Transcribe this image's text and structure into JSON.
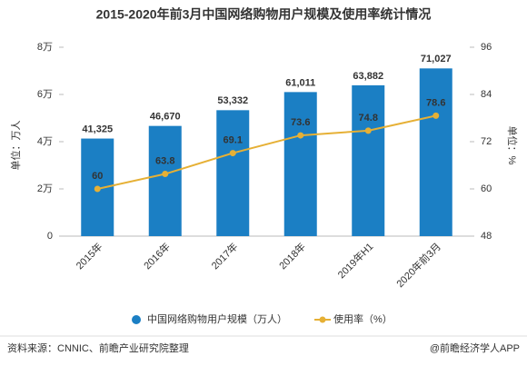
{
  "chart_data": {
    "type": "bar_line",
    "title": "2015-2020年前3月中国网络购物用户规模及使用率统计情况",
    "y_label": "单位：万人",
    "y2_label": "单位：%",
    "categories": [
      "2015年",
      "2016年",
      "2017年",
      "2018年",
      "2019年H1",
      "2020年前3月"
    ],
    "series": [
      {
        "name": "中国网络购物用户规模（万人）",
        "type": "bar",
        "color": "#1b7fc4",
        "values": [
          41325,
          46670,
          53332,
          61011,
          63882,
          71027
        ],
        "value_labels": [
          "41,325",
          "46,670",
          "53,332",
          "61,011",
          "63,882",
          "71,027"
        ]
      },
      {
        "name": "使用率（%）",
        "type": "line",
        "axis": "y2",
        "color": "#e6b035",
        "values": [
          60,
          63.8,
          69.1,
          73.6,
          74.8,
          78.6
        ]
      }
    ],
    "ylim": [
      0,
      80000
    ],
    "yticks": [
      0,
      {
        "value": 20000,
        "label": "2万"
      },
      {
        "value": 40000,
        "label": "4万"
      },
      {
        "value": 60000,
        "label": "6万"
      },
      {
        "value": 80000,
        "label": "8万"
      }
    ],
    "y2lim": [
      48,
      96
    ],
    "y2ticks": [
      48,
      60,
      72,
      84,
      96
    ],
    "source": "资料来源：CNNIC、前瞻产业研究院整理",
    "credit": "@前瞻经济学人APP"
  }
}
